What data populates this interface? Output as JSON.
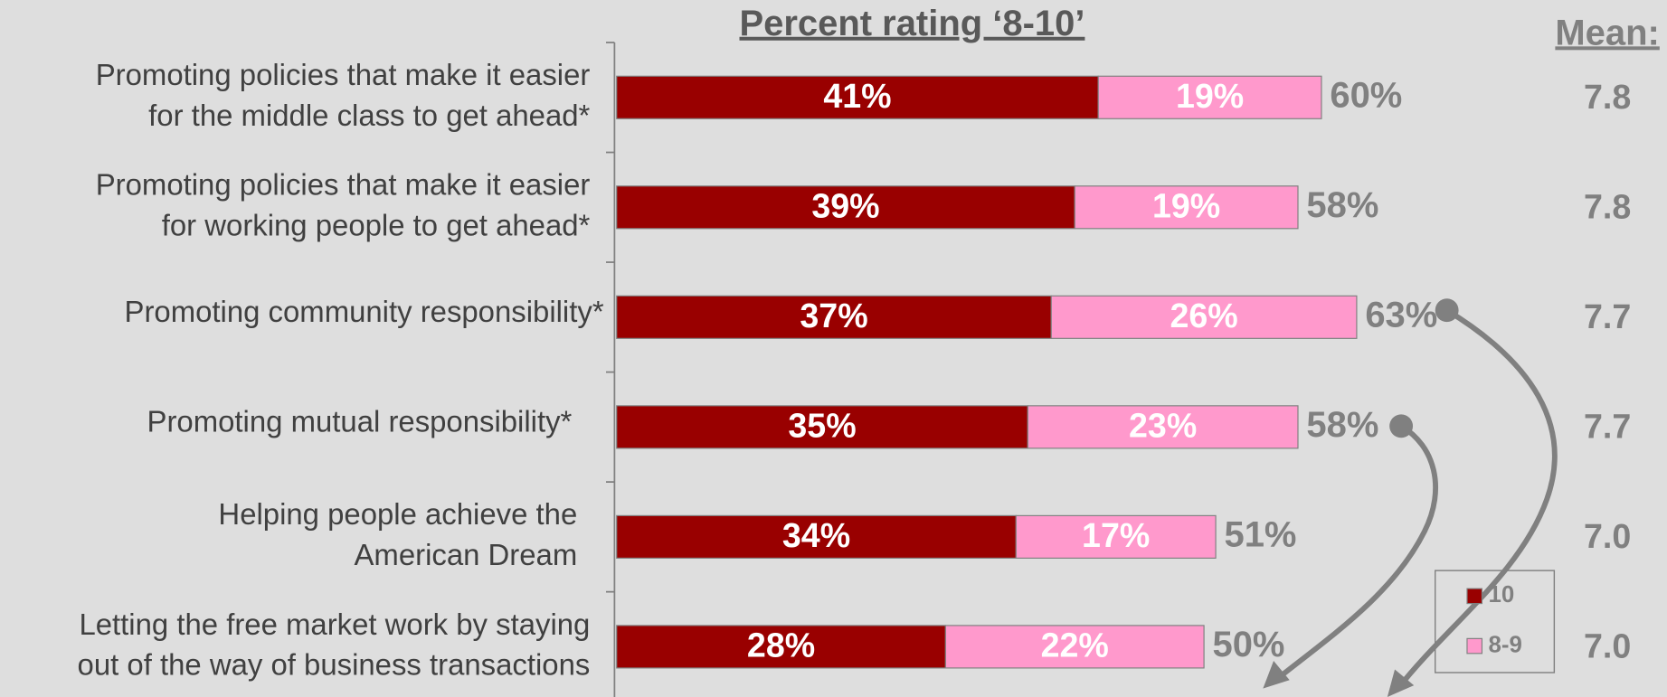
{
  "chart_data": {
    "type": "stacked-bar-horizontal",
    "title": "Percent rating ‘8-10’",
    "categories": [
      [
        "Promoting policies that make it easier",
        "for the middle class to get ahead*"
      ],
      [
        "Promoting policies that make it easier",
        "for working people to get ahead*"
      ],
      [
        "Promoting community responsibility*"
      ],
      [
        "Promoting mutual responsibility*"
      ],
      [
        "Helping people achieve the",
        "American Dream"
      ],
      [
        "Letting the free market work by staying",
        "out of the way of business transactions"
      ]
    ],
    "series": [
      {
        "name": "10",
        "color": "#990000",
        "values": [
          41,
          39,
          37,
          35,
          34,
          28
        ],
        "value_labels": [
          "41%",
          "39%",
          "37%",
          "35%",
          "34%",
          "28%"
        ]
      },
      {
        "name": "8-9",
        "color": "#ff99cc",
        "values": [
          19,
          19,
          26,
          23,
          17,
          22
        ],
        "value_labels": [
          "19%",
          "19%",
          "26%",
          "23%",
          "17%",
          "22%"
        ]
      }
    ],
    "totals": [
      60,
      58,
      63,
      58,
      51,
      50
    ],
    "total_labels": [
      "60%",
      "58%",
      "63%",
      "58%",
      "51%",
      "50%"
    ],
    "mean_title": "Mean:",
    "means": [
      "7.8",
      "7.8",
      "7.7",
      "7.7",
      "7.0",
      "7.0"
    ]
  }
}
